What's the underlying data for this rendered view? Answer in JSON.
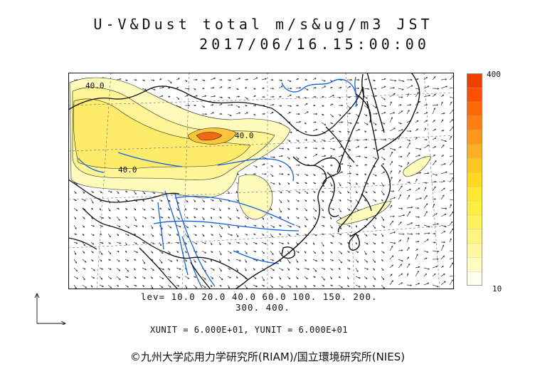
{
  "header": {
    "title": "U-V&Dust total m/s&ug/m3 JST",
    "timestamp": "2017/06/16.15:00:00"
  },
  "colorbar": {
    "max_label": "400",
    "min_label": "10",
    "colors": [
      "#fffff0",
      "#fffcc0",
      "#fff8a0",
      "#fff480",
      "#fff060",
      "#fff040",
      "#ffe830",
      "#ffd820",
      "#ffc820",
      "#ffb020",
      "#ff9818",
      "#ff8010",
      "#ff6808",
      "#ff5000",
      "#f04000"
    ]
  },
  "levels": {
    "line1": "lev= 10.0 20.0 40.0 60.0 100. 150. 200.",
    "line2": "300. 400."
  },
  "contour_labels": [
    "40.0",
    "40.0",
    "40.0"
  ],
  "units": "XUNIT = 6.000E+01, YUNIT = 6.000E+01",
  "copyright": "©九州大学応用力学研究所(RIAM)/国立環境研究所(NIES)"
}
